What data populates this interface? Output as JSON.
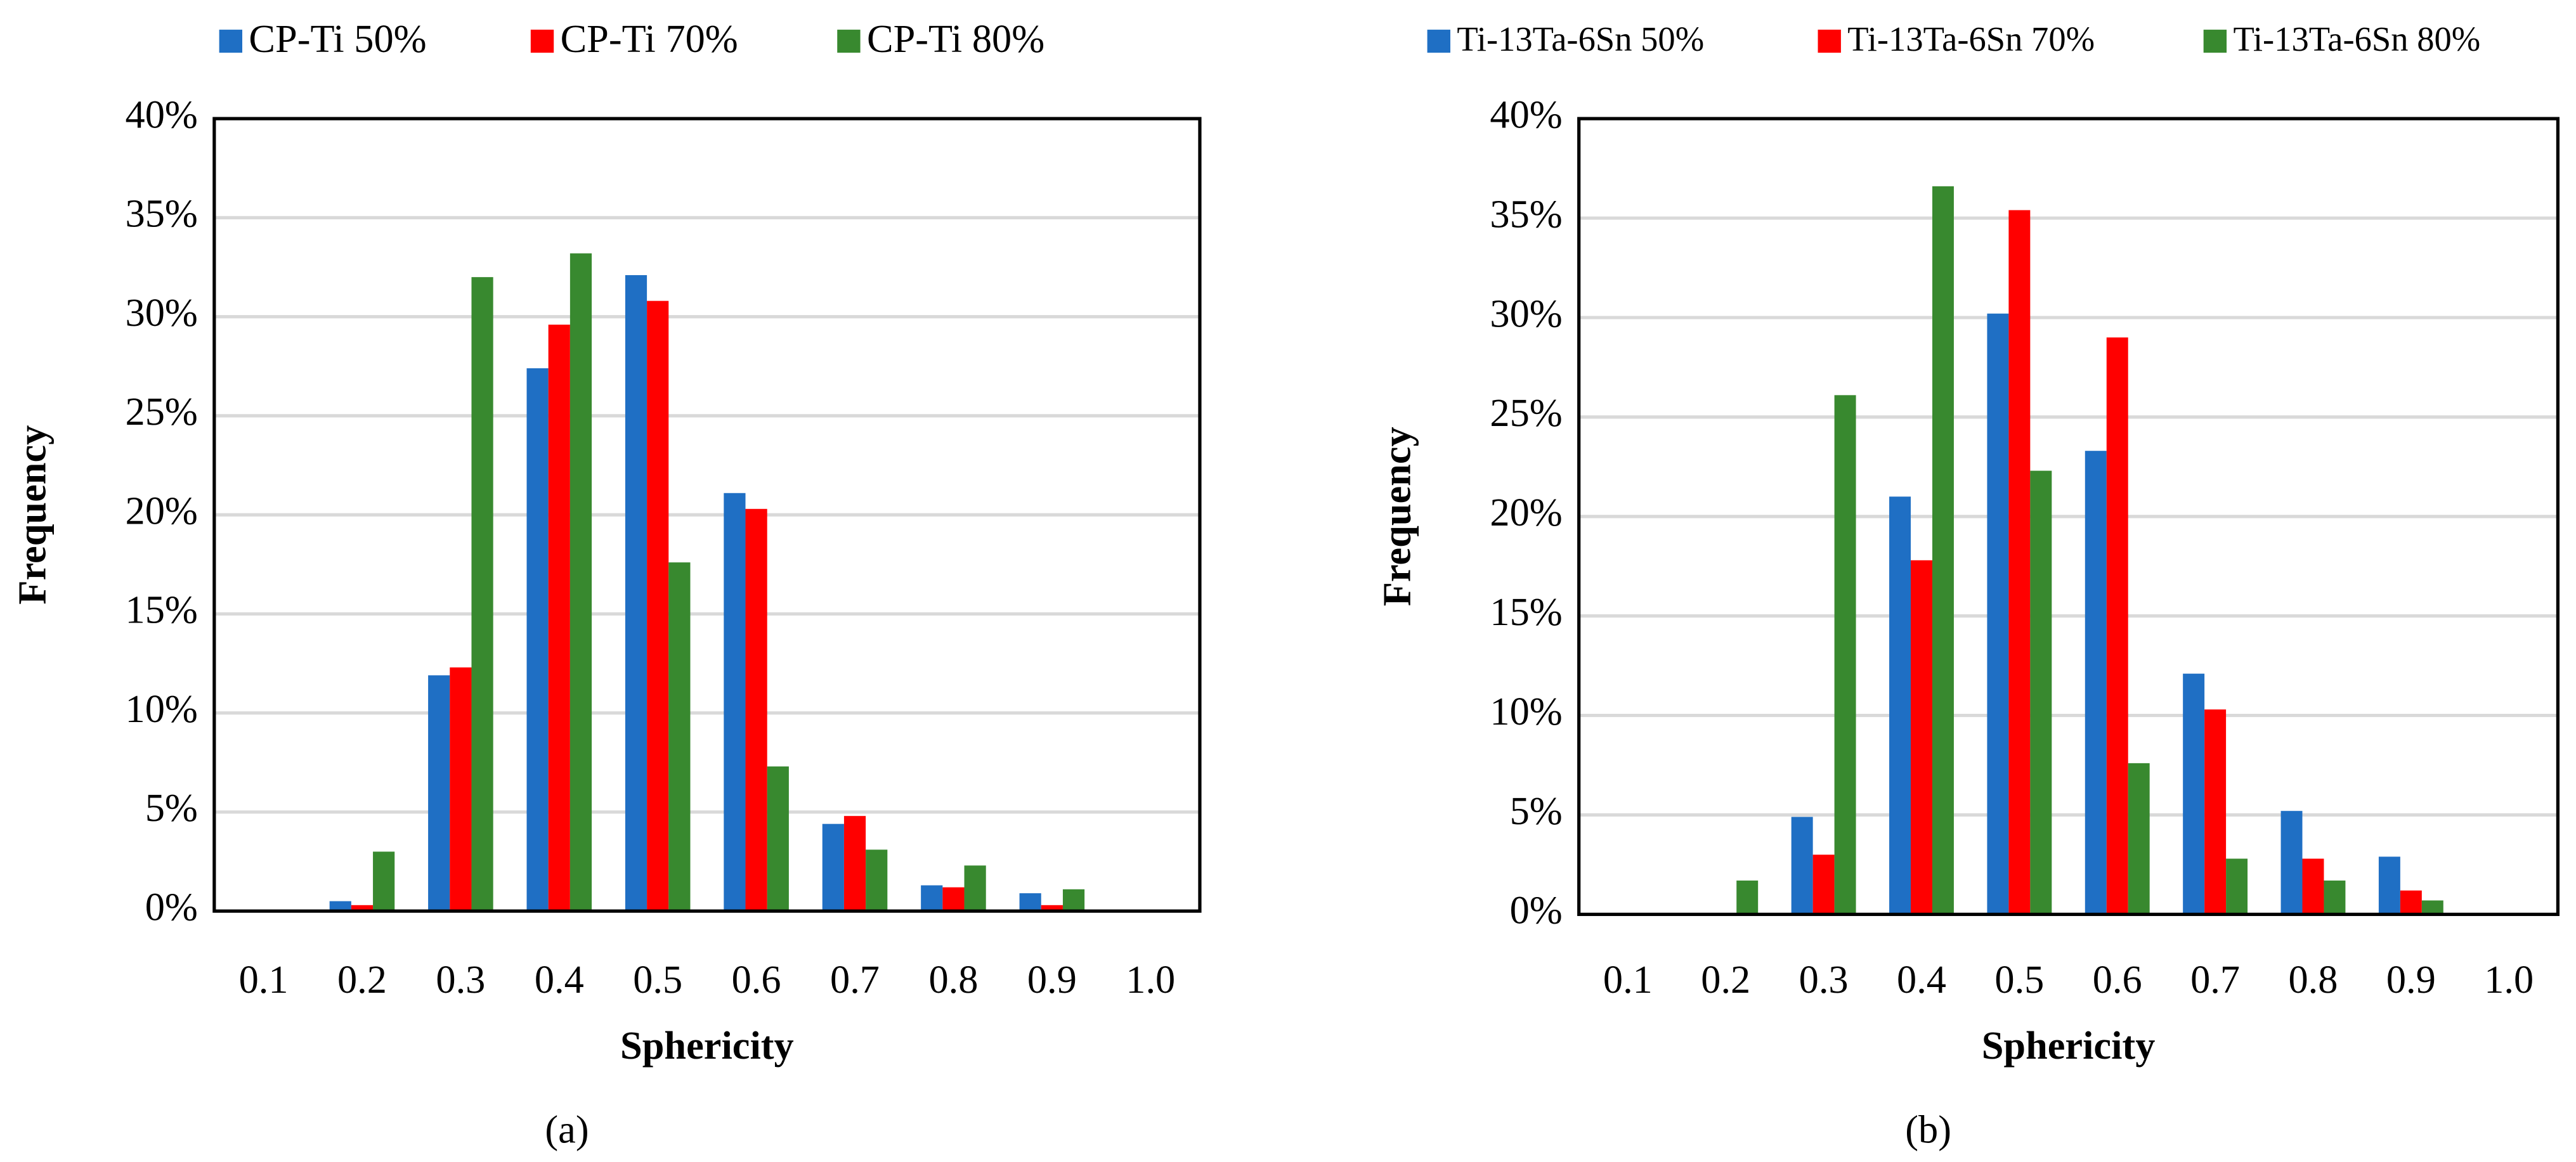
{
  "chart_data": [
    {
      "type": "bar",
      "label": "(a)",
      "xlabel": "Sphericity",
      "ylabel": "Frequency",
      "categories": [
        "0.1",
        "0.2",
        "0.3",
        "0.4",
        "0.5",
        "0.6",
        "0.7",
        "0.8",
        "0.9",
        "1.0"
      ],
      "series": [
        {
          "name": "CP-Ti 50%",
          "color": "#1f6fc4",
          "values": [
            0,
            0.5,
            11.9,
            27.4,
            32.1,
            21.1,
            4.4,
            1.3,
            0.9,
            0
          ]
        },
        {
          "name": "CP-Ti 70%",
          "color": "#ff0000",
          "values": [
            0,
            0.3,
            12.3,
            29.6,
            30.8,
            20.3,
            4.8,
            1.2,
            0.3,
            0
          ]
        },
        {
          "name": "CP-Ti 80%",
          "color": "#38892f",
          "values": [
            0,
            3.0,
            32.0,
            33.2,
            17.6,
            7.3,
            3.1,
            2.3,
            1.1,
            0
          ]
        }
      ],
      "ylim": [
        0,
        40
      ],
      "yticks": [
        {
          "value": 0,
          "label": "0%"
        },
        {
          "value": 5,
          "label": "5%"
        },
        {
          "value": 10,
          "label": "10%"
        },
        {
          "value": 15,
          "label": "15%"
        },
        {
          "value": 20,
          "label": "20%"
        },
        {
          "value": 25,
          "label": "25%"
        },
        {
          "value": 30,
          "label": "30%"
        },
        {
          "value": 35,
          "label": "35%"
        },
        {
          "value": 40,
          "label": "40%"
        }
      ],
      "grid": true,
      "legend": "top"
    },
    {
      "type": "bar",
      "label": "(b)",
      "xlabel": "Sphericity",
      "ylabel": "Frequency",
      "categories": [
        "0.1",
        "0.2",
        "0.3",
        "0.4",
        "0.5",
        "0.6",
        "0.7",
        "0.8",
        "0.9",
        "1.0"
      ],
      "series": [
        {
          "name": "Ti-13Ta-6Sn 50%",
          "color": "#1f6fc4",
          "values": [
            0,
            0,
            4.9,
            21.0,
            30.2,
            23.3,
            12.1,
            5.2,
            2.9,
            0
          ]
        },
        {
          "name": "Ti-13Ta-6Sn 70%",
          "color": "#ff0000",
          "values": [
            0,
            0,
            3.0,
            17.8,
            35.4,
            29.0,
            10.3,
            2.8,
            1.2,
            0
          ]
        },
        {
          "name": "Ti-13Ta-6Sn 80%",
          "color": "#38892f",
          "values": [
            0,
            1.7,
            26.1,
            36.6,
            22.3,
            7.6,
            2.8,
            1.7,
            0.7,
            0
          ]
        }
      ],
      "ylim": [
        0,
        40
      ],
      "yticks": [
        {
          "value": 0,
          "label": "0%"
        },
        {
          "value": 5,
          "label": "5%"
        },
        {
          "value": 10,
          "label": "10%"
        },
        {
          "value": 15,
          "label": "15%"
        },
        {
          "value": 20,
          "label": "20%"
        },
        {
          "value": 25,
          "label": "25%"
        },
        {
          "value": 30,
          "label": "30%"
        },
        {
          "value": 35,
          "label": "35%"
        },
        {
          "value": 40,
          "label": "40%"
        }
      ],
      "grid": true,
      "legend": "top"
    }
  ]
}
